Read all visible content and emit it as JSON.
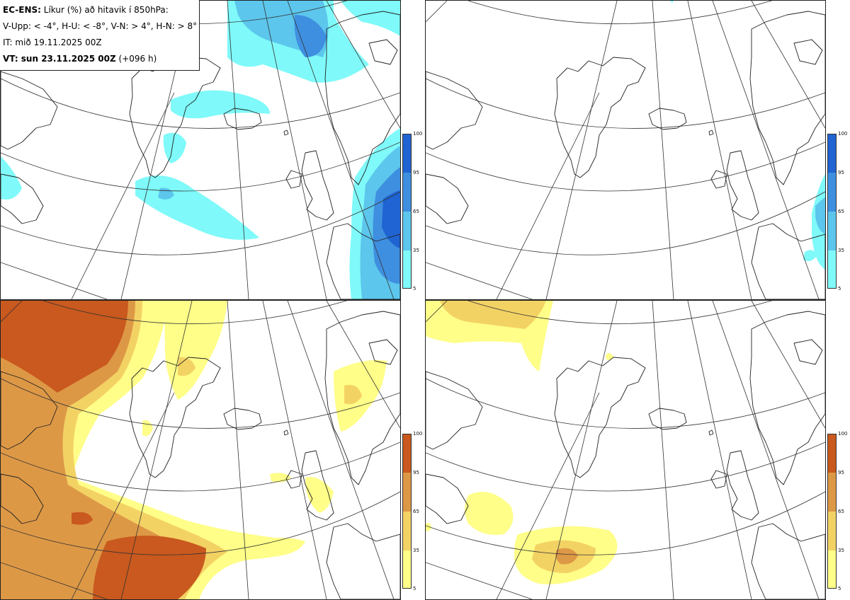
{
  "header": {
    "model_label": "EC-ENS:",
    "product": "Líkur (%) að hitavik í 850hPa:",
    "thresholds": "V-Upp: < -4°, H-U: < -8°, V-N: > 4°, H-N: > 8°",
    "init_time": "IT: mið 19.11.2025 00Z",
    "valid_label": "VT: sun 23.11.2025 00Z",
    "lead_time": "(+096 h)"
  },
  "colorbars": {
    "cold": {
      "colors": [
        "#7ff9f9",
        "#5cc6ec",
        "#3f8fe0",
        "#1f64d2"
      ],
      "ticks": [
        "100",
        "95",
        "65",
        "35",
        "5"
      ]
    },
    "warm": {
      "colors": [
        "#fffe88",
        "#f3d264",
        "#dd9846",
        "#c9591e"
      ],
      "ticks": [
        "100",
        "95",
        "65",
        "35",
        "5"
      ]
    }
  },
  "panels": [
    {
      "position": "upper-left",
      "threshold": "V-Upp: < -4°",
      "field": "cold"
    },
    {
      "position": "upper-right",
      "threshold": "H-U: < -8°",
      "field": "cold"
    },
    {
      "position": "lower-left",
      "threshold": "V-N: > 4°",
      "field": "warm"
    },
    {
      "position": "lower-right",
      "threshold": "H-N: > 8°",
      "field": "warm"
    }
  ]
}
